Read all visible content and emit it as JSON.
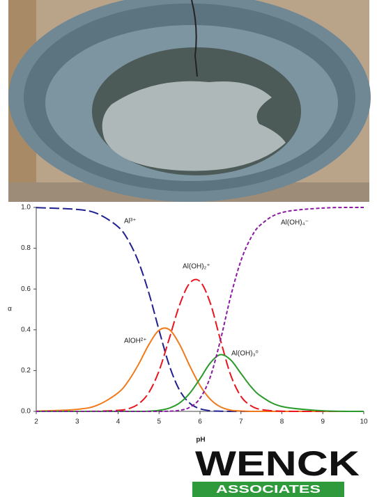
{
  "chart_data": {
    "type": "line",
    "xlabel": "pH",
    "ylabel": "α",
    "x": [
      2,
      3,
      3.5,
      4,
      4.25,
      4.5,
      4.75,
      5,
      5.25,
      5.5,
      5.75,
      6,
      6.25,
      6.5,
      6.75,
      7,
      7.25,
      7.5,
      8,
      9,
      10
    ],
    "series": [
      {
        "name": "Al³⁺",
        "color": "#1f1f8f",
        "line_style": "dashed",
        "values": [
          0.999,
          0.99,
          0.969,
          0.905,
          0.838,
          0.732,
          0.581,
          0.398,
          0.225,
          0.104,
          0.04,
          0.013,
          0.003,
          0.001,
          0,
          0,
          0,
          0,
          0,
          0,
          0
        ]
      },
      {
        "name": "AlOH²⁺",
        "color": "#f07a1a",
        "line_style": "solid",
        "values": [
          0.001,
          0.01,
          0.031,
          0.091,
          0.149,
          0.231,
          0.327,
          0.398,
          0.401,
          0.329,
          0.223,
          0.127,
          0.06,
          0.022,
          0.006,
          0.002,
          0,
          0,
          0,
          0,
          0
        ]
      },
      {
        "name": "Al(OH)₂⁺",
        "color": "#e8141e",
        "line_style": "dashed",
        "values": [
          0,
          0,
          0.001,
          0.005,
          0.013,
          0.037,
          0.092,
          0.199,
          0.357,
          0.521,
          0.629,
          0.637,
          0.532,
          0.35,
          0.178,
          0.074,
          0.027,
          0.009,
          0.001,
          0,
          0
        ]
      },
      {
        "name": "Al(OH)₃⁰",
        "color": "#2a9a2a",
        "line_style": "solid",
        "values": [
          0,
          0,
          0,
          0,
          0,
          0,
          0.001,
          0.005,
          0.016,
          0.041,
          0.089,
          0.16,
          0.237,
          0.278,
          0.252,
          0.186,
          0.12,
          0.073,
          0.024,
          0.003,
          0
        ]
      },
      {
        "name": "Al(OH)₄⁻",
        "color": "#8a1aa0",
        "line_style": "dotted",
        "values": [
          0,
          0,
          0,
          0,
          0,
          0,
          0,
          0,
          0.001,
          0.005,
          0.02,
          0.064,
          0.168,
          0.35,
          0.564,
          0.739,
          0.853,
          0.918,
          0.975,
          0.997,
          1.0
        ]
      }
    ],
    "xlim": [
      2,
      10
    ],
    "xticks": [
      2,
      3,
      4,
      5,
      6,
      7,
      8,
      9,
      10
    ],
    "ylim": [
      0,
      1
    ],
    "yticks": [
      {
        "value": 0,
        "label": "0.0"
      },
      {
        "value": 0.2,
        "label": "0.2"
      },
      {
        "value": 0.4,
        "label": "0.4"
      },
      {
        "value": 0.6,
        "label": "0.6"
      },
      {
        "value": 0.8,
        "label": "0.8"
      },
      {
        "value": 1,
        "label": "1.0"
      }
    ],
    "grid": false
  },
  "logo": {
    "name": "WENCK",
    "tagline": "ASSOCIATES"
  }
}
